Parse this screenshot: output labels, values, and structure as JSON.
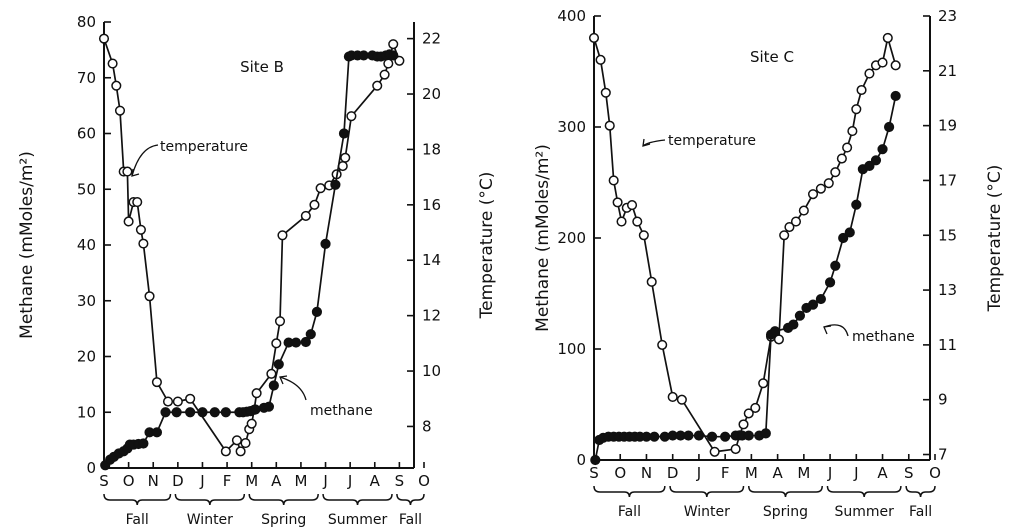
{
  "chart_data": [
    {
      "type": "line",
      "title": "Site B",
      "x_unit": "month",
      "months": [
        "S",
        "O",
        "N",
        "D",
        "J",
        "F",
        "M",
        "A",
        "M",
        "J",
        "J",
        "A",
        "S",
        "O"
      ],
      "seasons": [
        "Fall",
        "Winter",
        "Spring",
        "Summer",
        "Fall"
      ],
      "ylabel_left": "Methane (mMoles/m²)",
      "ylabel_right": "Temperature (°C)",
      "ylim_left": [
        0,
        80
      ],
      "ylim_right": [
        6.5,
        22.6
      ],
      "yticks_left": [
        "0",
        "10",
        "20",
        "30",
        "40",
        "50",
        "60",
        "70",
        "80"
      ],
      "yticks_right": [
        "8",
        "10",
        "12",
        "14",
        "16",
        "18",
        "20",
        "22"
      ],
      "series": [
        {
          "name": "temperature",
          "axis": "right",
          "x": [
            0.0,
            0.35,
            0.5,
            0.65,
            0.8,
            0.95,
            1.0,
            1.2,
            1.35,
            1.5,
            1.6,
            1.85,
            2.15,
            2.6,
            3.0,
            3.5,
            4.95,
            5.4,
            5.55,
            5.75,
            5.9,
            6.0,
            6.1,
            6.2,
            6.8,
            7.0,
            7.15,
            7.25,
            8.2,
            8.55,
            8.8,
            9.15,
            9.45,
            9.7,
            9.8,
            10.05,
            11.1,
            11.4,
            11.55,
            11.75,
            12.0
          ],
          "y": [
            22.0,
            21.1,
            20.3,
            19.4,
            17.2,
            17.2,
            15.4,
            16.1,
            16.1,
            15.1,
            14.6,
            12.7,
            9.6,
            8.9,
            8.9,
            9.0,
            7.1,
            7.5,
            7.1,
            7.4,
            7.9,
            8.1,
            8.6,
            9.2,
            9.9,
            11.0,
            11.8,
            14.9,
            15.6,
            16.0,
            16.6,
            16.7,
            17.1,
            17.4,
            17.7,
            19.2,
            20.3,
            20.7,
            21.1,
            21.8,
            21.2
          ]
        },
        {
          "name": "methane",
          "axis": "left",
          "x": [
            0.05,
            0.25,
            0.4,
            0.6,
            0.8,
            0.95,
            1.05,
            1.2,
            1.4,
            1.6,
            1.85,
            2.15,
            2.5,
            2.95,
            3.5,
            4.0,
            4.5,
            4.95,
            5.5,
            5.65,
            5.8,
            5.95,
            6.15,
            6.5,
            6.7,
            6.9,
            7.1,
            7.5,
            7.8,
            8.2,
            8.4,
            8.65,
            9.0,
            9.4,
            9.75,
            9.95,
            10.05,
            10.3,
            10.55,
            10.9,
            11.1,
            11.25,
            11.45,
            11.6,
            11.75
          ],
          "y": [
            0.5,
            1.5,
            2.0,
            2.6,
            3.0,
            3.5,
            4.2,
            4.2,
            4.3,
            4.4,
            6.4,
            6.4,
            10.0,
            10.0,
            10.0,
            10.0,
            10.0,
            10.0,
            10.0,
            10.0,
            10.1,
            10.2,
            10.5,
            10.8,
            11.0,
            14.8,
            18.6,
            22.5,
            22.5,
            22.6,
            24.0,
            28.0,
            40.2,
            50.8,
            60.0,
            73.8,
            74.0,
            74.0,
            74.0,
            74.0,
            73.8,
            73.8,
            74.0,
            74.2,
            74.0
          ]
        }
      ],
      "annotations": [
        "temperature",
        "methane"
      ]
    },
    {
      "type": "line",
      "title": "Site C",
      "x_unit": "month",
      "months": [
        "S",
        "O",
        "N",
        "D",
        "J",
        "F",
        "M",
        "A",
        "M",
        "J",
        "J",
        "A",
        "S",
        "O"
      ],
      "seasons": [
        "Fall",
        "Winter",
        "Spring",
        "Summer",
        "Fall"
      ],
      "ylabel_left": "Methane (mMoles/m²)",
      "ylabel_right": "Temperature (°C)",
      "ylim_left": [
        0,
        400
      ],
      "ylim_right": [
        6.8,
        23
      ],
      "yticks_left": [
        "0",
        "100",
        "200",
        "300",
        "400"
      ],
      "yticks_right": [
        "7",
        "9",
        "11",
        "13",
        "15",
        "17",
        "19",
        "21",
        "23"
      ],
      "series": [
        {
          "name": "temperature",
          "axis": "right",
          "x": [
            0.0,
            0.25,
            0.45,
            0.6,
            0.75,
            0.9,
            1.05,
            1.25,
            1.45,
            1.65,
            1.9,
            2.2,
            2.6,
            3.0,
            3.35,
            4.6,
            5.4,
            5.55,
            5.7,
            5.9,
            6.15,
            6.45,
            6.75,
            7.05,
            7.25,
            7.45,
            7.7,
            8.0,
            8.35,
            8.65,
            8.95,
            9.2,
            9.45,
            9.65,
            9.85,
            10.0,
            10.2,
            10.5,
            10.75,
            11.0,
            11.2,
            11.5
          ],
          "y": [
            22.2,
            21.4,
            20.2,
            19.0,
            17.0,
            16.2,
            15.5,
            16.0,
            16.1,
            15.5,
            15.0,
            13.3,
            11.0,
            9.1,
            9.0,
            7.1,
            7.2,
            7.7,
            8.1,
            8.5,
            8.7,
            9.6,
            11.3,
            11.2,
            15.0,
            15.3,
            15.5,
            15.9,
            16.5,
            16.7,
            16.9,
            17.3,
            17.8,
            18.2,
            18.8,
            19.6,
            20.3,
            20.9,
            21.2,
            21.3,
            22.2,
            21.2
          ]
        },
        {
          "name": "methane",
          "axis": "left",
          "x": [
            0.05,
            0.2,
            0.35,
            0.55,
            0.75,
            0.95,
            1.15,
            1.35,
            1.55,
            1.75,
            2.0,
            2.3,
            2.7,
            3.0,
            3.3,
            3.6,
            4.0,
            4.5,
            5.0,
            5.4,
            5.65,
            5.9,
            6.3,
            6.55,
            6.75,
            6.9,
            7.4,
            7.6,
            7.85,
            8.1,
            8.35,
            8.65,
            9.0,
            9.2,
            9.5,
            9.75,
            10.0,
            10.25,
            10.5,
            10.75,
            11.0,
            11.25,
            11.5
          ],
          "y": [
            0,
            18,
            20,
            21,
            21,
            21,
            21,
            21,
            21,
            21,
            21,
            21,
            21,
            22,
            22,
            22,
            22,
            21,
            21,
            22,
            22,
            22,
            22,
            24,
            113,
            116,
            119,
            122,
            130,
            137,
            140,
            145,
            160,
            175,
            200,
            205,
            230,
            262,
            265,
            270,
            280,
            300,
            328
          ]
        }
      ],
      "annotations": [
        "temperature",
        "methane"
      ]
    }
  ]
}
